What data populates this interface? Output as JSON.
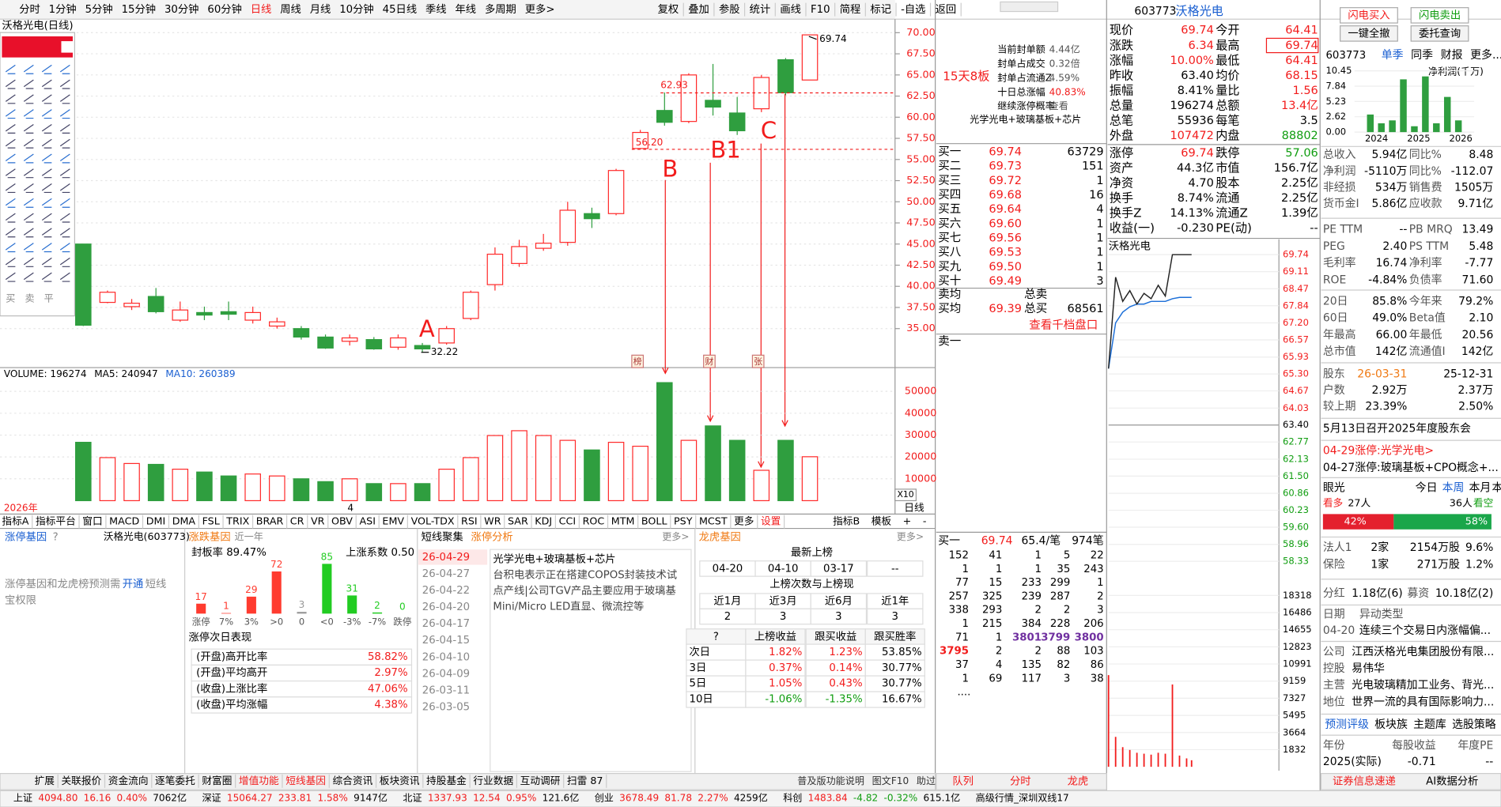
{
  "toolbar": {
    "tabs": [
      "分时",
      "1分钟",
      "5分钟",
      "15分钟",
      "30分钟",
      "60分钟",
      "日线",
      "周线",
      "月线",
      "10分钟",
      "45日线",
      "季线",
      "年线",
      "多周期",
      "更多>"
    ],
    "tools": [
      "复权",
      "叠加",
      "参股",
      "统计",
      "画线",
      "F10",
      "简程",
      "标记",
      "-自选",
      "返回"
    ]
  },
  "draw_tools": {
    "trade": [
      "买",
      "卖",
      "平"
    ]
  },
  "kline": {
    "title": "沃格光电(日线)",
    "ylim": [
      30.5,
      71.6
    ],
    "up_color": "#ff2a2a",
    "down_color": "#2f9e3f",
    "yticks": [
      {
        "value": 35,
        "label": "35.00"
      },
      {
        "value": 37.5,
        "label": "37.50"
      },
      {
        "value": 40,
        "label": "40.00"
      },
      {
        "value": 42.5,
        "label": "42.50"
      },
      {
        "value": 45,
        "label": "45.00"
      },
      {
        "value": 47.5,
        "label": "47.50"
      },
      {
        "value": 50,
        "label": "50.00"
      },
      {
        "value": 52.5,
        "label": "52.50"
      },
      {
        "value": 55,
        "label": "55.00"
      },
      {
        "value": 57.5,
        "label": "57.50"
      },
      {
        "value": 60,
        "label": "60.00"
      },
      {
        "value": 62.5,
        "label": "62.50"
      },
      {
        "value": 65,
        "label": "65.00"
      },
      {
        "value": 67.5,
        "label": "67.50"
      },
      {
        "value": 70,
        "label": "70.00"
      }
    ],
    "candles": [
      {
        "open": 45.0,
        "close": 35.4,
        "high": 45.0,
        "low": 35.3
      },
      {
        "open": 38.1,
        "close": 39.3,
        "high": 39.5,
        "low": 38.0
      },
      {
        "open": 37.6,
        "close": 38.0,
        "high": 38.5,
        "low": 37.2
      },
      {
        "open": 38.8,
        "close": 37.0,
        "high": 39.8,
        "low": 36.8
      },
      {
        "open": 36.0,
        "close": 37.2,
        "high": 38.2,
        "low": 35.8
      },
      {
        "open": 36.9,
        "close": 36.6,
        "high": 37.6,
        "low": 36.0
      },
      {
        "open": 37.0,
        "close": 36.7,
        "high": 38.2,
        "low": 36.0
      },
      {
        "open": 36.0,
        "close": 36.9,
        "high": 37.6,
        "low": 35.6
      },
      {
        "open": 35.3,
        "close": 35.8,
        "high": 36.3,
        "low": 35.0
      },
      {
        "open": 35.0,
        "close": 34.0,
        "high": 35.3,
        "low": 33.7
      },
      {
        "open": 34.0,
        "close": 32.7,
        "high": 34.3,
        "low": 32.6
      },
      {
        "open": 33.5,
        "close": 33.9,
        "high": 34.3,
        "low": 33.0
      },
      {
        "open": 33.7,
        "close": 32.6,
        "high": 34.0,
        "low": 32.5
      },
      {
        "open": 32.8,
        "close": 33.9,
        "high": 34.3,
        "low": 32.5
      },
      {
        "open": 33.0,
        "close": 32.6,
        "high": 33.3,
        "low": 32.22
      },
      {
        "open": 33.3,
        "close": 35.0,
        "high": 35.3,
        "low": 33.1
      },
      {
        "open": 36.2,
        "close": 39.3,
        "high": 39.5,
        "low": 36.0
      },
      {
        "open": 40.2,
        "close": 43.8,
        "high": 44.6,
        "low": 39.5
      },
      {
        "open": 42.7,
        "close": 44.7,
        "high": 45.5,
        "low": 42.3
      },
      {
        "open": 44.5,
        "close": 45.1,
        "high": 46.2,
        "low": 44.2
      },
      {
        "open": 45.2,
        "close": 49.0,
        "high": 50.0,
        "low": 44.8
      },
      {
        "open": 48.6,
        "close": 48.0,
        "high": 49.3,
        "low": 46.9
      },
      {
        "open": 48.6,
        "close": 53.7,
        "high": 53.9,
        "low": 48.4
      },
      {
        "open": 56.3,
        "close": 58.2,
        "high": 58.5,
        "low": 56.2
      },
      {
        "open": 60.8,
        "close": 59.4,
        "high": 62.93,
        "low": 59.0
      },
      {
        "open": 59.5,
        "close": 65.0,
        "high": 65.2,
        "low": 59.3
      },
      {
        "open": 62.0,
        "close": 61.2,
        "high": 66.3,
        "low": 60.2
      },
      {
        "open": 60.5,
        "close": 58.4,
        "high": 62.4,
        "low": 57.9
      },
      {
        "open": 61.0,
        "close": 64.7,
        "high": 65.0,
        "low": 60.6
      },
      {
        "open": 66.8,
        "close": 62.9,
        "high": 67.0,
        "low": 62.6
      },
      {
        "open": 64.4,
        "close": 69.74,
        "high": 69.74,
        "low": 64.4
      }
    ],
    "annotations": [
      "A",
      "B",
      "B1",
      "C"
    ],
    "price_notes": [
      "56.20"
    ],
    "markers": [
      "榜",
      "财",
      "张"
    ],
    "x_labels": [
      "2026年",
      "4"
    ],
    "period": "日线"
  },
  "volume": {
    "header": [
      "VOLUME: 196274",
      "MA5: 240947",
      "MA10: 260389"
    ],
    "ylim": [
      0,
      60000
    ],
    "yticks": [
      10000,
      20000,
      30000,
      40000,
      50000
    ],
    "scale_note": "X10",
    "values": [
      26700,
      19700,
      17000,
      16600,
      14400,
      13100,
      11300,
      12200,
      11300,
      10000,
      8700,
      10000,
      7800,
      7800,
      7800,
      14400,
      19700,
      29800,
      32000,
      29800,
      27600,
      23200,
      26700,
      24900,
      54000,
      27600,
      34200,
      27600,
      13900,
      27600,
      20100
    ]
  },
  "indicator_tabs": {
    "left": [
      "指标A",
      "指标平台",
      "窗口",
      "MACD",
      "DMI",
      "DMA",
      "FSL",
      "TRIX",
      "BRAR",
      "CR",
      "VR",
      "OBV",
      "ASI",
      "EMV",
      "VOL-TDX",
      "RSI",
      "WR",
      "SAR",
      "KDJ",
      "CCI",
      "ROC",
      "MTM",
      "BOLL",
      "PSY",
      "MCST",
      "更多",
      "设置"
    ],
    "right": [
      "指标B",
      "模板",
      "+",
      "-"
    ]
  },
  "limit_gene": {
    "title": "涨停基因",
    "help": "?",
    "stock": "沃格光电(603773)",
    "notice": [
      "涨停基因和龙虎榜预测需",
      "开通",
      "短线",
      "宝权限"
    ]
  },
  "rise_gene": {
    "title": "涨跌基因",
    "period": "近一年",
    "seal_rate": "封板率 89.47%",
    "rise_coef": "上涨系数 0.50",
    "categories": [
      "涨停",
      "7%",
      "3%",
      ">0",
      "0",
      "<0",
      "-3%",
      "-7%",
      "跌停"
    ],
    "values": [
      17,
      1,
      29,
      72,
      3,
      85,
      31,
      2,
      0
    ],
    "colors": [
      "#ff3b2f",
      "#ff3b2f",
      "#ff3b2f",
      "#ff3b2f",
      "#999999",
      "#22cc22",
      "#22cc22",
      "#22cc22",
      "#22cc22"
    ],
    "next_title": "涨停次日表现",
    "next_rows": [
      [
        "(开盘)高开比率",
        "58.82%"
      ],
      [
        "(开盘)平均高开",
        "2.97%"
      ],
      [
        "(收盘)上涨比率",
        "47.06%"
      ],
      [
        "(收盘)平均涨幅",
        "4.38%"
      ]
    ]
  },
  "short_term": {
    "tabs": [
      "短线聚集",
      "涨停分析"
    ],
    "more": "更多>",
    "dates": [
      "26-04-29",
      "26-04-27",
      "26-04-22",
      "26-04-20",
      "26-04-17",
      "26-04-15",
      "26-04-10",
      "26-04-09",
      "26-03-11",
      "26-03-05"
    ],
    "content": [
      "光学光电+玻璃基板+芯片",
      "台积电表示正在搭建COPOS封装技术试",
      "点产线|公司TGV产品主要应用于玻璃基",
      "Mini/Micro LED直显、微流控等"
    ]
  },
  "dragon": {
    "title": "龙虎基因",
    "more": "更多>",
    "latest": "最新上榜",
    "dates": [
      "04-20",
      "04-10",
      "03-17",
      "--"
    ],
    "count_title": "上榜次数与上榜现",
    "count_header": [
      "近1月",
      "近3月",
      "近6月",
      "近1年"
    ],
    "counts": [
      "2",
      "3",
      "3",
      "3"
    ],
    "perf_header": [
      "?",
      "上榜收益",
      "跟买收益",
      "跟买胜率"
    ],
    "perf_rows": [
      [
        "次日",
        "1.82%",
        "1.23%",
        "53.85%"
      ],
      [
        "3日",
        "0.37%",
        "0.14%",
        "30.77%"
      ],
      [
        "5日",
        "1.05%",
        "0.43%",
        "30.77%"
      ],
      [
        "10日",
        "-1.06%",
        "-1.35%",
        "16.67%"
      ]
    ]
  },
  "bottom_tabs": {
    "left": [
      "扩展",
      "关联报价",
      "资金流向",
      "逐笔委托",
      "财富圈",
      "增值功能",
      "短线基因",
      "综合资讯",
      "板块资讯",
      "持股基金",
      "行业数据",
      "互动调研",
      "扫雷 87"
    ],
    "right": [
      "普及版功能说明",
      "图文F10",
      "助过栏"
    ]
  },
  "status_bar": [
    [
      "上证",
      "4094.80",
      "16.16",
      "0.40%",
      "7062亿"
    ],
    [
      "深证",
      "15064.27",
      "233.81",
      "1.58%",
      "9147亿"
    ],
    [
      "北证",
      "1337.93",
      "12.54",
      "0.95%",
      "121.6亿"
    ],
    [
      "创业",
      "3678.49",
      "81.78",
      "2.27%",
      "4259亿"
    ],
    [
      "科创",
      "1483.84",
      "-4.82",
      "-0.32%",
      "615.1亿"
    ],
    [
      "高级行情_深圳双线17"
    ]
  ],
  "limit_info": {
    "streak": "15天8板",
    "rows": [
      [
        "当前封单额",
        "4.44亿"
      ],
      [
        "封单占成交",
        "0.32倍"
      ],
      [
        "封单占流通Z",
        "4.59%"
      ],
      [
        "十日总涨幅",
        "40.83%"
      ],
      [
        "继续涨停概率",
        "查看"
      ]
    ],
    "concept": "光学光电+玻璃基板+芯片"
  },
  "order_book": {
    "bids": [
      [
        "买一",
        "69.74",
        "63729"
      ],
      [
        "买二",
        "69.73",
        "151"
      ],
      [
        "买三",
        "69.72",
        "1"
      ],
      [
        "买四",
        "69.68",
        "16"
      ],
      [
        "买五",
        "69.64",
        "4"
      ],
      [
        "买六",
        "69.60",
        "1"
      ],
      [
        "买七",
        "69.56",
        "1"
      ],
      [
        "买八",
        "69.53",
        "1"
      ],
      [
        "买九",
        "69.50",
        "1"
      ],
      [
        "买十",
        "69.49",
        "3"
      ]
    ],
    "sell_avg": [
      "卖均",
      "总卖"
    ],
    "buy_avg": [
      "买均",
      "69.39",
      "总买",
      "68561"
    ],
    "deep_link": "查看千档盘口",
    "ask1": "卖一",
    "queue_head": [
      "买一",
      "69.74",
      "65.4/笔",
      "974笔"
    ],
    "queue": [
      [
        "152",
        "41",
        "1",
        "5",
        "22"
      ],
      [
        "1",
        "1",
        "1",
        "35",
        "243"
      ],
      [
        "77",
        "15",
        "233",
        "299",
        "1"
      ],
      [
        "257",
        "325",
        "239",
        "287",
        "2"
      ],
      [
        "338",
        "293",
        "2",
        "2",
        "3"
      ],
      [
        "1",
        "215",
        "384",
        "228",
        "206"
      ],
      [
        "71",
        "1",
        "3801",
        "3799",
        "3800"
      ],
      [
        "3795",
        "2",
        "2",
        "88",
        "103"
      ],
      [
        "37",
        "4",
        "135",
        "82",
        "86"
      ],
      [
        "1",
        "69",
        "117",
        "3",
        "38"
      ],
      [
        "...."
      ]
    ],
    "tabs": [
      "队列",
      "分时",
      "龙虎"
    ]
  },
  "quote": {
    "code": "603773",
    "name": "沃格光电",
    "rows": [
      [
        "现价",
        "69.74",
        "今开",
        "64.41"
      ],
      [
        "涨跌",
        "6.34",
        "最高",
        "69.74"
      ],
      [
        "涨幅",
        "10.00%",
        "最低",
        "64.41"
      ],
      [
        "昨收",
        "63.40",
        "均价",
        "68.15"
      ],
      [
        "振幅",
        "8.41%",
        "量比",
        "1.56"
      ],
      [
        "总量",
        "196274",
        "总额",
        "13.4亿"
      ],
      [
        "总笔",
        "55936",
        "每笔",
        "3.5"
      ],
      [
        "外盘",
        "107472",
        "内盘",
        "88802"
      ]
    ],
    "rows2": [
      [
        "涨停",
        "69.74",
        "跌停",
        "57.06"
      ],
      [
        "资产",
        "44.3亿",
        "市值",
        "156.7亿"
      ],
      [
        "净资",
        "4.70",
        "股本",
        "2.25亿"
      ],
      [
        "换手",
        "8.74%",
        "流通",
        "2.25亿"
      ],
      [
        "换手Z",
        "14.13%",
        "流通Z",
        "1.39亿"
      ],
      [
        "收益(一)",
        "-0.230",
        "PE(动)",
        "--"
      ]
    ]
  },
  "intraday": {
    "title": "沃格光电",
    "ylim": [
      57.06,
      69.74
    ],
    "vol_ylim": [
      0,
      18318
    ],
    "yticks": [
      69.74,
      69.11,
      68.47,
      67.84,
      {
        "value": 67.2,
        "label": "67.20"
      },
      66.57,
      65.93,
      {
        "value": 65.3,
        "label": "65.30"
      },
      64.67,
      64.03,
      {
        "value": 63.4,
        "label": "63.40"
      },
      62.77,
      62.13,
      {
        "value": 61.5,
        "label": "61.50"
      },
      60.86,
      60.23,
      {
        "value": 59.6,
        "label": "59.60"
      },
      58.96,
      58.33
    ],
    "vol_ticks": [
      18318,
      16486,
      14655,
      12823,
      10991,
      9159,
      7327,
      5495,
      3664,
      1832
    ],
    "minutes": [
      0,
      10,
      20,
      30,
      40,
      50,
      60,
      70,
      80,
      90,
      100,
      110,
      117
    ],
    "price": [
      65.5,
      68.9,
      68.0,
      68.4,
      67.9,
      68.3,
      68.1,
      68.6,
      68.2,
      69.74,
      69.74,
      69.74,
      69.74
    ],
    "avg": [
      65.5,
      67.2,
      67.6,
      67.8,
      67.9,
      67.9,
      68.0,
      68.0,
      68.0,
      68.1,
      68.15,
      68.15,
      68.15
    ],
    "volume": [
      9800,
      3200,
      2100,
      1800,
      1500,
      1400,
      1300,
      1500,
      1400,
      8800,
      1200,
      900,
      700
    ]
  },
  "side": {
    "buttons": [
      "闪电买入",
      "闪电卖出",
      "一键全撤",
      "委托查询"
    ],
    "code": "603773",
    "tabs": [
      "单季",
      "同季",
      "财报",
      "更多..."
    ],
    "profit": {
      "title": "净利润(千万)",
      "ylim": [
        0,
        10.45
      ],
      "yticks": [
        10.45,
        7.84,
        5.23,
        2.62,
        {
          "value": 0,
          "label": "0.00"
        }
      ],
      "years": [
        "2024",
        "2025",
        "2026"
      ],
      "values": [
        3.0,
        1.5,
        2.0,
        9.0,
        1.0,
        9.5,
        1.5,
        6.0,
        2.0
      ],
      "color": "#2f9e3f"
    },
    "fin": [
      [
        "总收入",
        "5.94亿",
        "同比%",
        "8.48"
      ],
      [
        "净利润",
        "-5110万",
        "同比%",
        "-112.07"
      ],
      [
        "非经损",
        "534万",
        "销售费",
        "1505万"
      ],
      [
        "货币金I",
        "5.86亿",
        "应收款",
        "9.71亿"
      ]
    ],
    "val": [
      [
        "PE TTM",
        "--",
        "PB MRQ",
        "13.49"
      ],
      [
        "PEG",
        "2.40",
        "PS TTM",
        "5.48"
      ],
      [
        "毛利率",
        "16.74",
        "净利率",
        "-7.77"
      ],
      [
        "ROE",
        "-4.84%",
        "负债率",
        "71.60"
      ]
    ],
    "perf": [
      [
        "20日",
        "85.8%",
        "今年来",
        "79.2%"
      ],
      [
        "60日",
        "49.0%",
        "Beta值",
        "2.10"
      ],
      [
        "年最高",
        "66.00",
        "年最低",
        "20.56"
      ],
      [
        "总市值",
        "142亿",
        "流通值I",
        "142亿"
      ]
    ],
    "holders": [
      [
        "股东",
        "26-03-31",
        "25-12-31"
      ],
      [
        "户数",
        "2.92万",
        "2.37万"
      ],
      [
        "较上期",
        "23.39%",
        "2.50%"
      ]
    ],
    "news": [
      "5月13日召开2025年度股东会",
      "04-29涨停:光学光电>",
      "04-27涨停:玻璃基板+CPO概念+..."
    ],
    "view_tabs": [
      "眼光",
      "今日",
      "本周",
      "本月",
      "本年"
    ],
    "votes": [
      "看多",
      "27人",
      "36人",
      "看空"
    ],
    "sentiment": {
      "values": [
        42,
        58
      ],
      "value_labels": [
        "42%",
        "58%"
      ]
    },
    "inst": [
      [
        "法人1",
        "2家",
        "2154万股",
        "9.6%"
      ],
      [
        "保险",
        "1家",
        "271万股",
        "1.2%"
      ]
    ],
    "dividend": [
      "分红",
      "1.18亿(6)",
      "募资",
      "10.18亿(2)"
    ],
    "alerts": [
      [
        "日期",
        "异动类型"
      ],
      [
        "04-20",
        "连续三个交易日内涨幅偏..."
      ]
    ],
    "profile": [
      [
        "公司",
        "江西沃格光电集团股份有限..."
      ],
      [
        "控股",
        "易伟华"
      ],
      [
        "主营",
        "光电玻璃精加工业务、背光..."
      ],
      [
        "地位",
        "世界一流的具有国际影响力..."
      ]
    ],
    "rating_tabs": [
      "预测评级",
      "板块族",
      "主题库",
      "选股策略"
    ],
    "eps": [
      [
        "年份",
        "每股收益",
        "年度PE"
      ],
      [
        "2025(实际)",
        "-0.71",
        "--"
      ]
    ],
    "footer": [
      "证券信息速递",
      "AI数据分析"
    ]
  }
}
